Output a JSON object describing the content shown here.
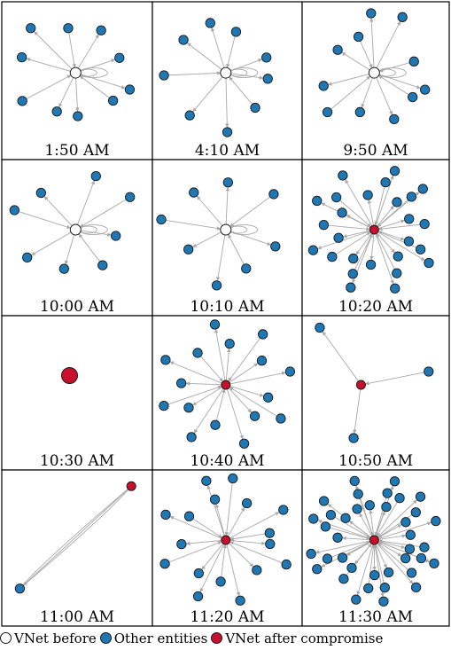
{
  "grid": {
    "rows": 4,
    "cols": 3
  },
  "colors": {
    "vnet_before": "#ffffff",
    "other_entities": "#1f77b4",
    "vnet_after": "#c8102e",
    "edge": "#a8a8a8",
    "node_stroke": "#1a1a1a"
  },
  "panels": [
    {
      "label": "1:50 AM",
      "center": "before",
      "spokes": 10,
      "loops": 2
    },
    {
      "label": "4:10 AM",
      "center": "before",
      "spokes": 9,
      "loops": 2
    },
    {
      "label": "9:50 AM",
      "center": "before",
      "spokes": 11,
      "loops": 2
    },
    {
      "label": "10:00 AM",
      "center": "before",
      "spokes": 8,
      "loops": 2
    },
    {
      "label": "10:10 AM",
      "center": "before",
      "spokes": 8,
      "loops": 2
    },
    {
      "label": "10:20 AM",
      "center": "after",
      "spokes": 26,
      "loops": 0
    },
    {
      "label": "10:30 AM",
      "center": "after",
      "spokes": 0,
      "loops": 0
    },
    {
      "label": "10:40 AM",
      "center": "after",
      "spokes": 16,
      "loops": 0
    },
    {
      "label": "10:50 AM",
      "center": "after",
      "spokes": 3,
      "loops": 0
    },
    {
      "label": "11:00 AM",
      "center": "after",
      "spokes": 1,
      "loops": 0
    },
    {
      "label": "11:20 AM",
      "center": "after",
      "spokes": 17,
      "loops": 0
    },
    {
      "label": "11:30 AM",
      "center": "after",
      "spokes": 38,
      "loops": 0
    }
  ],
  "legend": {
    "vnet_before": "VNet before",
    "other_entities": "Other entities",
    "vnet_after": "VNet after compromise"
  }
}
